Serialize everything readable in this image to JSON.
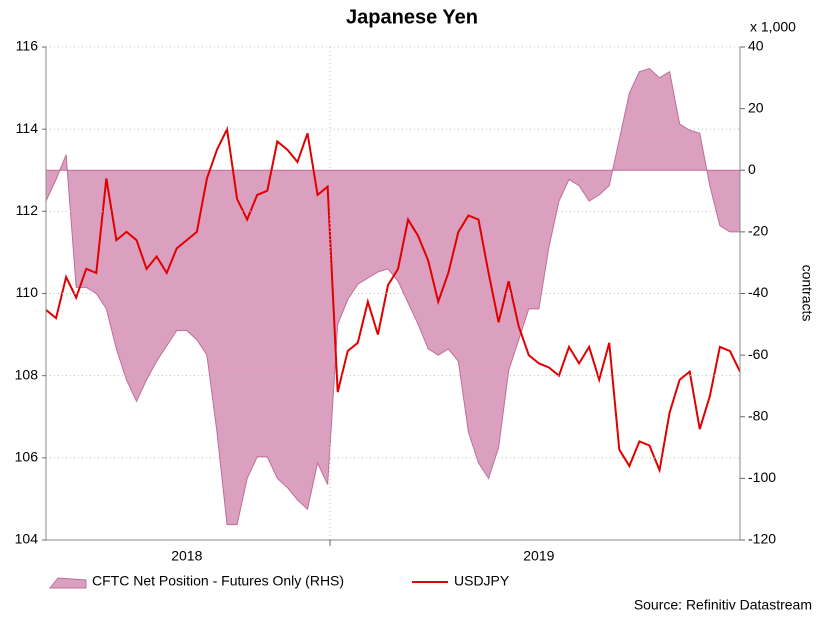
{
  "chart_data": {
    "type": "line",
    "title": "Japanese Yen",
    "y2_unit": "x 1,000",
    "y2_label": "contracts",
    "source": "Source: Refinitiv Datastream",
    "categories": [
      null,
      null,
      null,
      null,
      null,
      null,
      null,
      null,
      null,
      null,
      null,
      null,
      null,
      null,
      "2018",
      null,
      null,
      null,
      null,
      null,
      null,
      null,
      null,
      null,
      null,
      null,
      null,
      null,
      null,
      null,
      null,
      null,
      null,
      null,
      null,
      null,
      null,
      null,
      null,
      null,
      null,
      null,
      null,
      null,
      null,
      null,
      null,
      null,
      null,
      "2019",
      null,
      null,
      null,
      null,
      null,
      null,
      null,
      null,
      null,
      null,
      null,
      null,
      null,
      null,
      null,
      null,
      null,
      null,
      null,
      null
    ],
    "series": [
      {
        "name": "CFTC Net Position - Futures Only (RHS)",
        "type": "area",
        "axis": "y2",
        "color": "#dba0c0",
        "values": [
          -10,
          -3,
          5,
          -38,
          -38,
          -40,
          -45,
          -58,
          -68,
          -75,
          -68,
          -62,
          -57,
          -52,
          -52,
          -55,
          -60,
          -85,
          -115,
          -115,
          -100,
          -93,
          -93,
          -100,
          -103,
          -107,
          -110,
          -95,
          -102,
          -50,
          -42,
          -37,
          -35,
          -33,
          -32,
          -36,
          -43,
          -50,
          -58,
          -60,
          -58,
          -62,
          -85,
          -95,
          -100,
          -90,
          -65,
          -55,
          -45,
          -45,
          -25,
          -10,
          -3,
          -5,
          -10,
          -8,
          -5,
          10,
          25,
          32,
          33,
          30,
          32,
          15,
          13,
          12,
          -5,
          -18,
          -20,
          -20
        ]
      },
      {
        "name": "USDJPY",
        "type": "line",
        "color": "#e00000",
        "values": [
          109.6,
          109.4,
          110.4,
          109.9,
          110.6,
          110.5,
          112.8,
          111.3,
          111.5,
          111.3,
          110.6,
          110.9,
          110.5,
          111.1,
          111.3,
          111.5,
          112.8,
          113.5,
          114,
          112.3,
          111.8,
          112.4,
          112.5,
          113.7,
          113.5,
          113.2,
          113.9,
          112.4,
          112.6,
          107.6,
          108.6,
          108.8,
          109.8,
          109,
          110.2,
          110.6,
          111.8,
          111.4,
          110.8,
          109.8,
          110.5,
          111.5,
          111.9,
          111.8,
          110.5,
          109.3,
          110.3,
          109.2,
          108.5,
          108.3,
          108.2,
          108,
          108.7,
          108.3,
          108.7,
          107.9,
          108.8,
          106.2,
          105.8,
          106.4,
          106.3,
          105.7,
          107.1,
          107.9,
          108.1,
          106.7,
          107.5,
          108.7,
          108.6,
          108.1
        ]
      }
    ],
    "ylim": [
      104,
      116
    ],
    "yticks": [
      104,
      106,
      108,
      110,
      112,
      114,
      116
    ],
    "y2lim": [
      -120,
      40
    ],
    "y2ticks": [
      -120,
      -100,
      -80,
      -60,
      -40,
      -20,
      0,
      20,
      40
    ],
    "grid": true
  }
}
